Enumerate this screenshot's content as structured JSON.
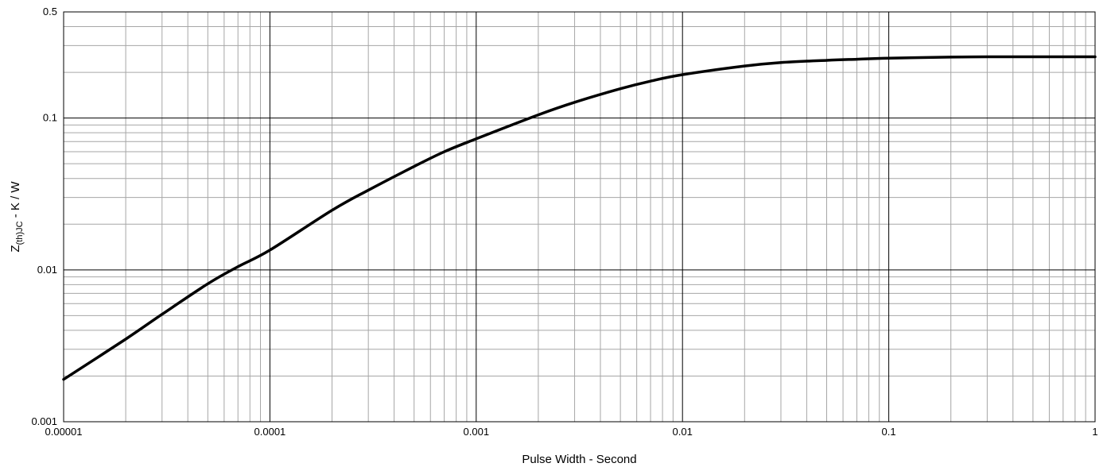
{
  "chart_data": {
    "type": "line",
    "title": "",
    "xlabel": "Pulse Width - Second",
    "ylabel": {
      "main": "Z",
      "subscript": "(th)JC",
      "suffix": " - K / W"
    },
    "x_scale": "log",
    "y_scale": "log",
    "xlim": [
      1e-05,
      1
    ],
    "ylim": [
      0.001,
      0.5
    ],
    "x_ticks": [
      1e-05,
      0.0001,
      0.001,
      0.01,
      0.1,
      1
    ],
    "x_tick_labels": [
      "0.00001",
      "0.0001",
      "0.001",
      "0.01",
      "0.1",
      "1"
    ],
    "y_ticks": [
      0.001,
      0.01,
      0.1,
      0.5
    ],
    "y_tick_labels": [
      "0.001",
      "0.01",
      "0.1",
      "0.5"
    ],
    "grid": true,
    "legend": "none",
    "series": [
      {
        "color": "#000000",
        "x": [
          1e-05,
          2e-05,
          3e-05,
          5e-05,
          7e-05,
          0.0001,
          0.0002,
          0.0003,
          0.0005,
          0.0007,
          0.001,
          0.002,
          0.003,
          0.005,
          0.007,
          0.01,
          0.02,
          0.03,
          0.05,
          0.07,
          0.1,
          0.2,
          0.3,
          0.5,
          0.7,
          1
        ],
        "y": [
          0.0019,
          0.0035,
          0.0051,
          0.0081,
          0.0105,
          0.0135,
          0.0247,
          0.0335,
          0.048,
          0.06,
          0.073,
          0.105,
          0.127,
          0.156,
          0.175,
          0.193,
          0.22,
          0.232,
          0.24,
          0.244,
          0.248,
          0.252,
          0.253,
          0.253,
          0.253,
          0.253
        ]
      }
    ]
  }
}
